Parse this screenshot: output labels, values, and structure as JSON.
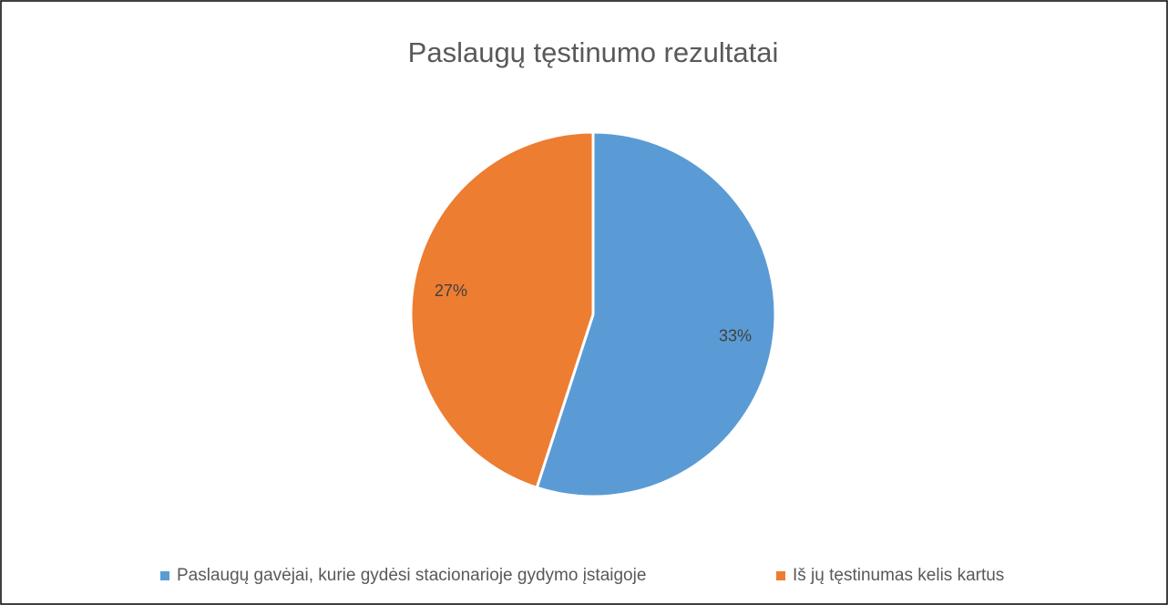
{
  "chart_data": {
    "type": "pie",
    "title": "Paslaugų tęstinumo rezultatai",
    "categories": [
      "Paslaugų gavėjai, kurie gydėsi stacionarioje gydymo įstaigoje",
      "Iš jų tęstinumas kelis kartus"
    ],
    "values": [
      33,
      27
    ],
    "value_labels": [
      "33%",
      "27%"
    ],
    "colors": [
      "#5b9bd5",
      "#ed7d31"
    ],
    "legend": "bottom"
  }
}
